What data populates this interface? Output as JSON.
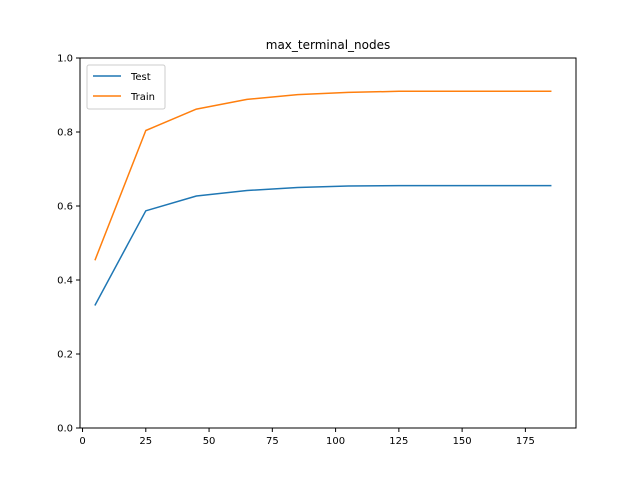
{
  "chart_data": {
    "type": "line",
    "title": "max_terminal_nodes",
    "xlabel": "",
    "ylabel": "",
    "xlim": [
      -1,
      195
    ],
    "ylim": [
      0.0,
      1.0
    ],
    "x_ticks": [
      0,
      25,
      50,
      75,
      100,
      125,
      150,
      175
    ],
    "x_tick_labels": [
      "0",
      "25",
      "50",
      "75",
      "100",
      "125",
      "150",
      "175"
    ],
    "y_ticks": [
      0.0,
      0.2,
      0.4,
      0.6,
      0.8,
      1.0
    ],
    "y_tick_labels": [
      "0.0",
      "0.2",
      "0.4",
      "0.6",
      "0.8",
      "1.0"
    ],
    "x": [
      5,
      25,
      45,
      65,
      85,
      105,
      125,
      145,
      165,
      185
    ],
    "series": [
      {
        "name": "Test",
        "color": "#1f77b4",
        "values": [
          0.333,
          0.587,
          0.627,
          0.642,
          0.65,
          0.654,
          0.655,
          0.655,
          0.655,
          0.655
        ]
      },
      {
        "name": "Train",
        "color": "#ff7f0e",
        "values": [
          0.455,
          0.804,
          0.862,
          0.888,
          0.901,
          0.907,
          0.91,
          0.91,
          0.91,
          0.91
        ]
      }
    ],
    "grid": false,
    "legend": "top-left"
  }
}
